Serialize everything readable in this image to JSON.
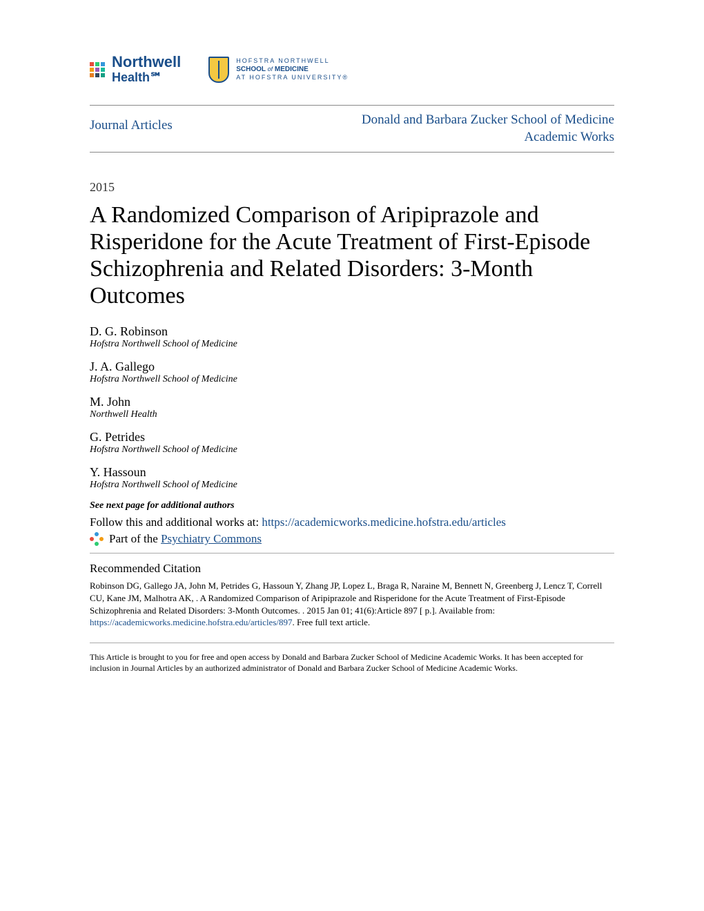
{
  "logos": {
    "northwell": {
      "name": "Northwell",
      "sub": "Health℠",
      "color": "#1a4e8a",
      "icon_colors": [
        "#e74c3c",
        "#2ecc71",
        "#3498db",
        "#f39c12",
        "#9b59b6",
        "#1abc9c",
        "#e67e22",
        "#34495e",
        "#16a085"
      ]
    },
    "hofstra": {
      "line1": "HOFSTRA NORTHWELL",
      "line2_a": "SCHOOL",
      "line2_of": "of",
      "line2_b": "MEDICINE",
      "line3": "AT HOFSTRA UNIVERSITY®"
    }
  },
  "header": {
    "left": "Journal Articles",
    "right_line1": "Donald and Barbara Zucker School of Medicine",
    "right_line2": "Academic Works"
  },
  "year": "2015",
  "title": "A Randomized Comparison of Aripiprazole and Risperidone for the Acute Treatment of First-Episode Schizophrenia and Related Disorders: 3-Month Outcomes",
  "authors": [
    {
      "name": "D. G. Robinson",
      "affil": "Hofstra Northwell School of Medicine"
    },
    {
      "name": "J. A. Gallego",
      "affil": "Hofstra Northwell School of Medicine"
    },
    {
      "name": "M. John",
      "affil": "Northwell Health"
    },
    {
      "name": "G. Petrides",
      "affil": "Hofstra Northwell School of Medicine"
    },
    {
      "name": "Y. Hassoun",
      "affil": "Hofstra Northwell School of Medicine"
    }
  ],
  "see_next": "See next page for additional authors",
  "follow": {
    "prefix": "Follow this and additional works at: ",
    "url": "https://academicworks.medicine.hofstra.edu/articles"
  },
  "partof": {
    "prefix": "Part of the ",
    "link": "Psychiatry Commons",
    "icon_nodes": [
      "#3498db",
      "#e74c3c",
      "#f39c12",
      "#2ecc71"
    ]
  },
  "citation": {
    "heading": "Recommended Citation",
    "body_before": "Robinson DG, Gallego JA, John M, Petrides G, Hassoun Y, Zhang JP, Lopez L, Braga R, Naraine M, Bennett N, Greenberg J, Lencz T, Correll CU, Kane JM, Malhotra AK, . A Randomized Comparison of Aripiprazole and Risperidone for the Acute Treatment of First-Episode Schizophrenia and Related Disorders: 3-Month Outcomes. . 2015 Jan 01; 41(6):Article 897 [ p.]. Available from: ",
    "url": "https://academicworks.medicine.hofstra.edu/articles/897",
    "body_after": ". Free full text article."
  },
  "footer": "This Article is brought to you for free and open access by Donald and Barbara Zucker School of Medicine Academic Works. It has been accepted for inclusion in Journal Articles by an authorized administrator of Donald and Barbara Zucker School of Medicine Academic Works.",
  "colors": {
    "link": "#1a4e8a",
    "text": "#000000",
    "rule": "#888888",
    "background": "#ffffff"
  }
}
